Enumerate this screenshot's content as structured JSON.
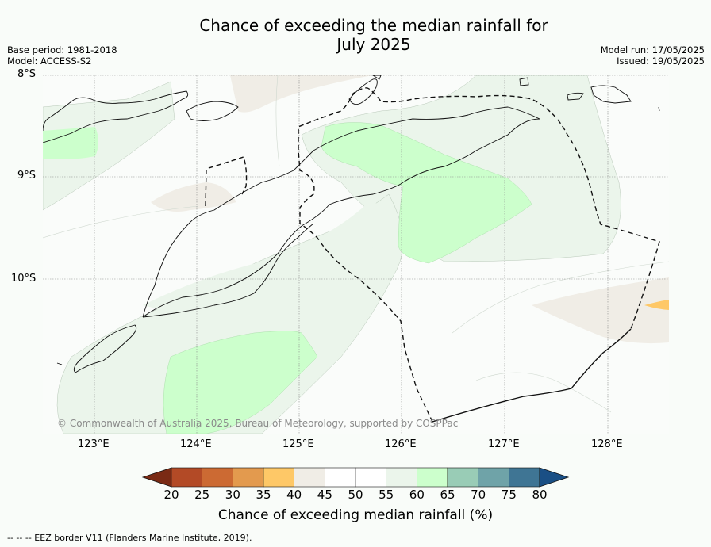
{
  "title_line1": "Chance of exceeding the median rainfall for",
  "title_line2": "July 2025",
  "base_period": "Base period: 1981-2018",
  "model": "Model: ACCESS-S2",
  "model_run": "Model run: 17/05/2025",
  "issued": "Issued: 19/05/2025",
  "lat_labels": [
    "8°S",
    "9°S",
    "10°S"
  ],
  "lon_labels": [
    "123°E",
    "124°E",
    "125°E",
    "126°E",
    "127°E",
    "128°E"
  ],
  "copyright": "© Commonwealth of Australia 2025, Bureau of Meteorology, supported by COSPPac",
  "colorbar": {
    "title": "Chance of exceeding median rainfall (%)",
    "ticks": [
      "20",
      "25",
      "30",
      "35",
      "40",
      "45",
      "50",
      "55",
      "60",
      "65",
      "70",
      "75",
      "80"
    ],
    "colors": [
      "#7a2a14",
      "#b34a26",
      "#cc6a33",
      "#e39a4e",
      "#fec867",
      "#f0ede6",
      "#ffffff",
      "#ffffff",
      "#ebf5eb",
      "#ccffcc",
      "#99ccb6",
      "#6fa3a8",
      "#3f7594",
      "#1a4f85"
    ]
  },
  "eez_note": "--  --  -- EEZ border V11 (Flanders Marine Institute, 2019)."
}
